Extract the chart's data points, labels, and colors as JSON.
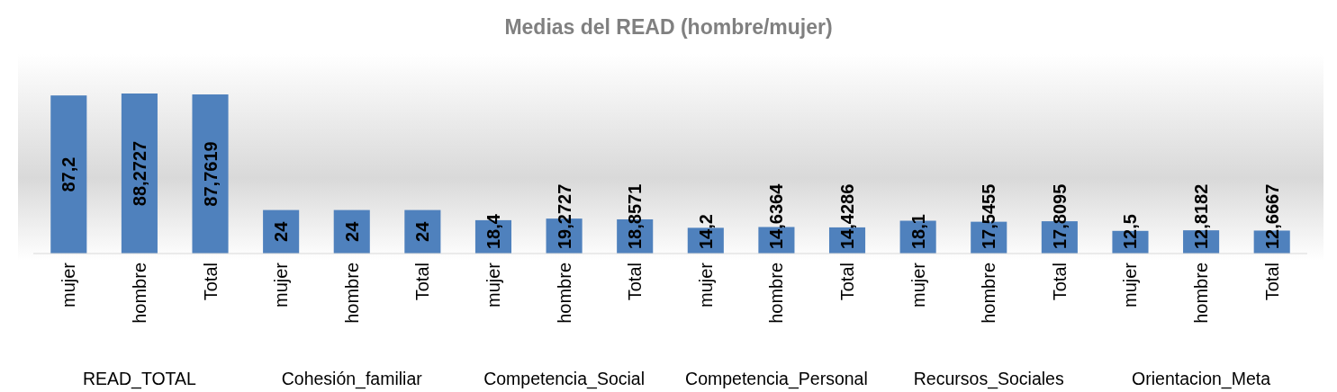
{
  "chart_data": {
    "type": "bar",
    "title": "Medias del READ (hombre/mujer)",
    "categories": [
      "mujer",
      "hombre",
      "Total",
      "mujer",
      "hombre",
      "Total",
      "mujer",
      "hombre",
      "Total",
      "mujer",
      "hombre",
      "Total",
      "mujer",
      "hombre",
      "Total",
      "mujer",
      "hombre",
      "Total"
    ],
    "values": [
      87.2,
      88.2727,
      87.7619,
      24,
      24,
      24,
      18.4,
      19.2727,
      18.8571,
      14.2,
      14.6364,
      14.4286,
      18.1,
      17.5455,
      17.8095,
      12.5,
      12.8182,
      12.6667
    ],
    "value_labels": [
      "87,2",
      "88,2727",
      "87,7619",
      "24",
      "24",
      "24",
      "18,4",
      "19,2727",
      "18,8571",
      "14,2",
      "14,6364",
      "14,4286",
      "18,1",
      "17,5455",
      "17,8095",
      "12,5",
      "12,8182",
      "12,6667"
    ],
    "color": "#4f81bd",
    "annotations": [
      "READ_TOTAL",
      "Cohesión_familiar",
      "Competencia_Social",
      "Competencia_Personal",
      "Recursos_Sociales",
      "Orientacion_Meta"
    ]
  }
}
